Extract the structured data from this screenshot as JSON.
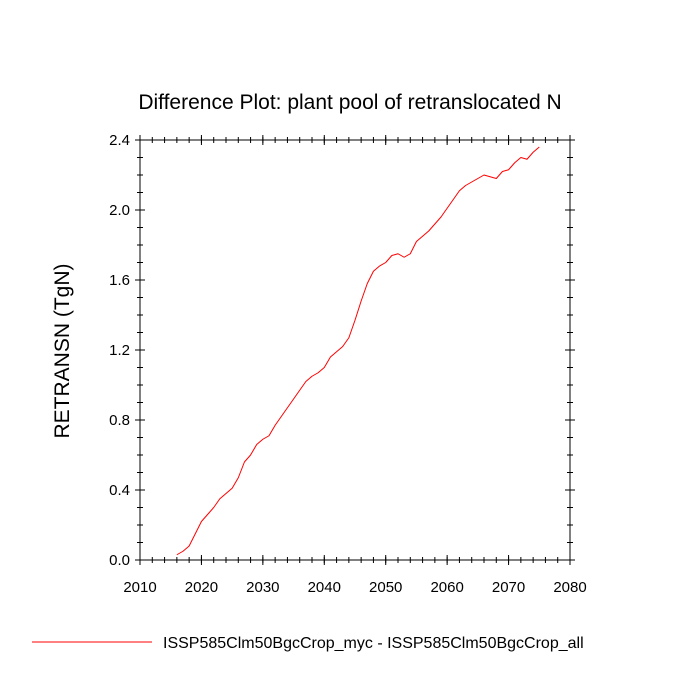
{
  "chart_data": {
    "type": "line",
    "title": "Difference Plot: plant pool of retranslocated N",
    "xlabel": "",
    "ylabel": "RETRANSN  (TgN)",
    "xlim": [
      2010,
      2080
    ],
    "ylim": [
      0.0,
      2.4
    ],
    "x_ticks": [
      "2010",
      "2020",
      "2030",
      "2040",
      "2050",
      "2060",
      "2070",
      "2080"
    ],
    "y_ticks": [
      "0.0",
      "0.4",
      "0.8",
      "1.2",
      "1.6",
      "2.0",
      "2.4"
    ],
    "grid": false,
    "legend_position": "bottom",
    "series": [
      {
        "name": "ISSP585Clm50BgcCrop_myc - ISSP585Clm50BgcCrop_all",
        "color": "#ff0000",
        "x": [
          2016,
          2017,
          2018,
          2019,
          2020,
          2021,
          2022,
          2023,
          2024,
          2025,
          2026,
          2027,
          2028,
          2029,
          2030,
          2031,
          2032,
          2033,
          2034,
          2035,
          2036,
          2037,
          2038,
          2039,
          2040,
          2041,
          2042,
          2043,
          2044,
          2045,
          2046,
          2047,
          2048,
          2049,
          2050,
          2051,
          2052,
          2053,
          2054,
          2055,
          2056,
          2057,
          2058,
          2059,
          2060,
          2061,
          2062,
          2063,
          2064,
          2065,
          2066,
          2067,
          2068,
          2069,
          2070,
          2071,
          2072,
          2073,
          2074,
          2075
        ],
        "values": [
          0.03,
          0.05,
          0.08,
          0.15,
          0.22,
          0.26,
          0.3,
          0.35,
          0.38,
          0.41,
          0.47,
          0.56,
          0.6,
          0.66,
          0.69,
          0.71,
          0.77,
          0.82,
          0.87,
          0.92,
          0.97,
          1.02,
          1.05,
          1.07,
          1.1,
          1.16,
          1.19,
          1.22,
          1.27,
          1.37,
          1.48,
          1.58,
          1.65,
          1.68,
          1.7,
          1.74,
          1.75,
          1.73,
          1.75,
          1.82,
          1.85,
          1.88,
          1.92,
          1.96,
          2.01,
          2.06,
          2.11,
          2.14,
          2.16,
          2.18,
          2.2,
          2.19,
          2.18,
          2.22,
          2.23,
          2.27,
          2.3,
          2.29,
          2.33,
          2.36
        ]
      }
    ]
  }
}
